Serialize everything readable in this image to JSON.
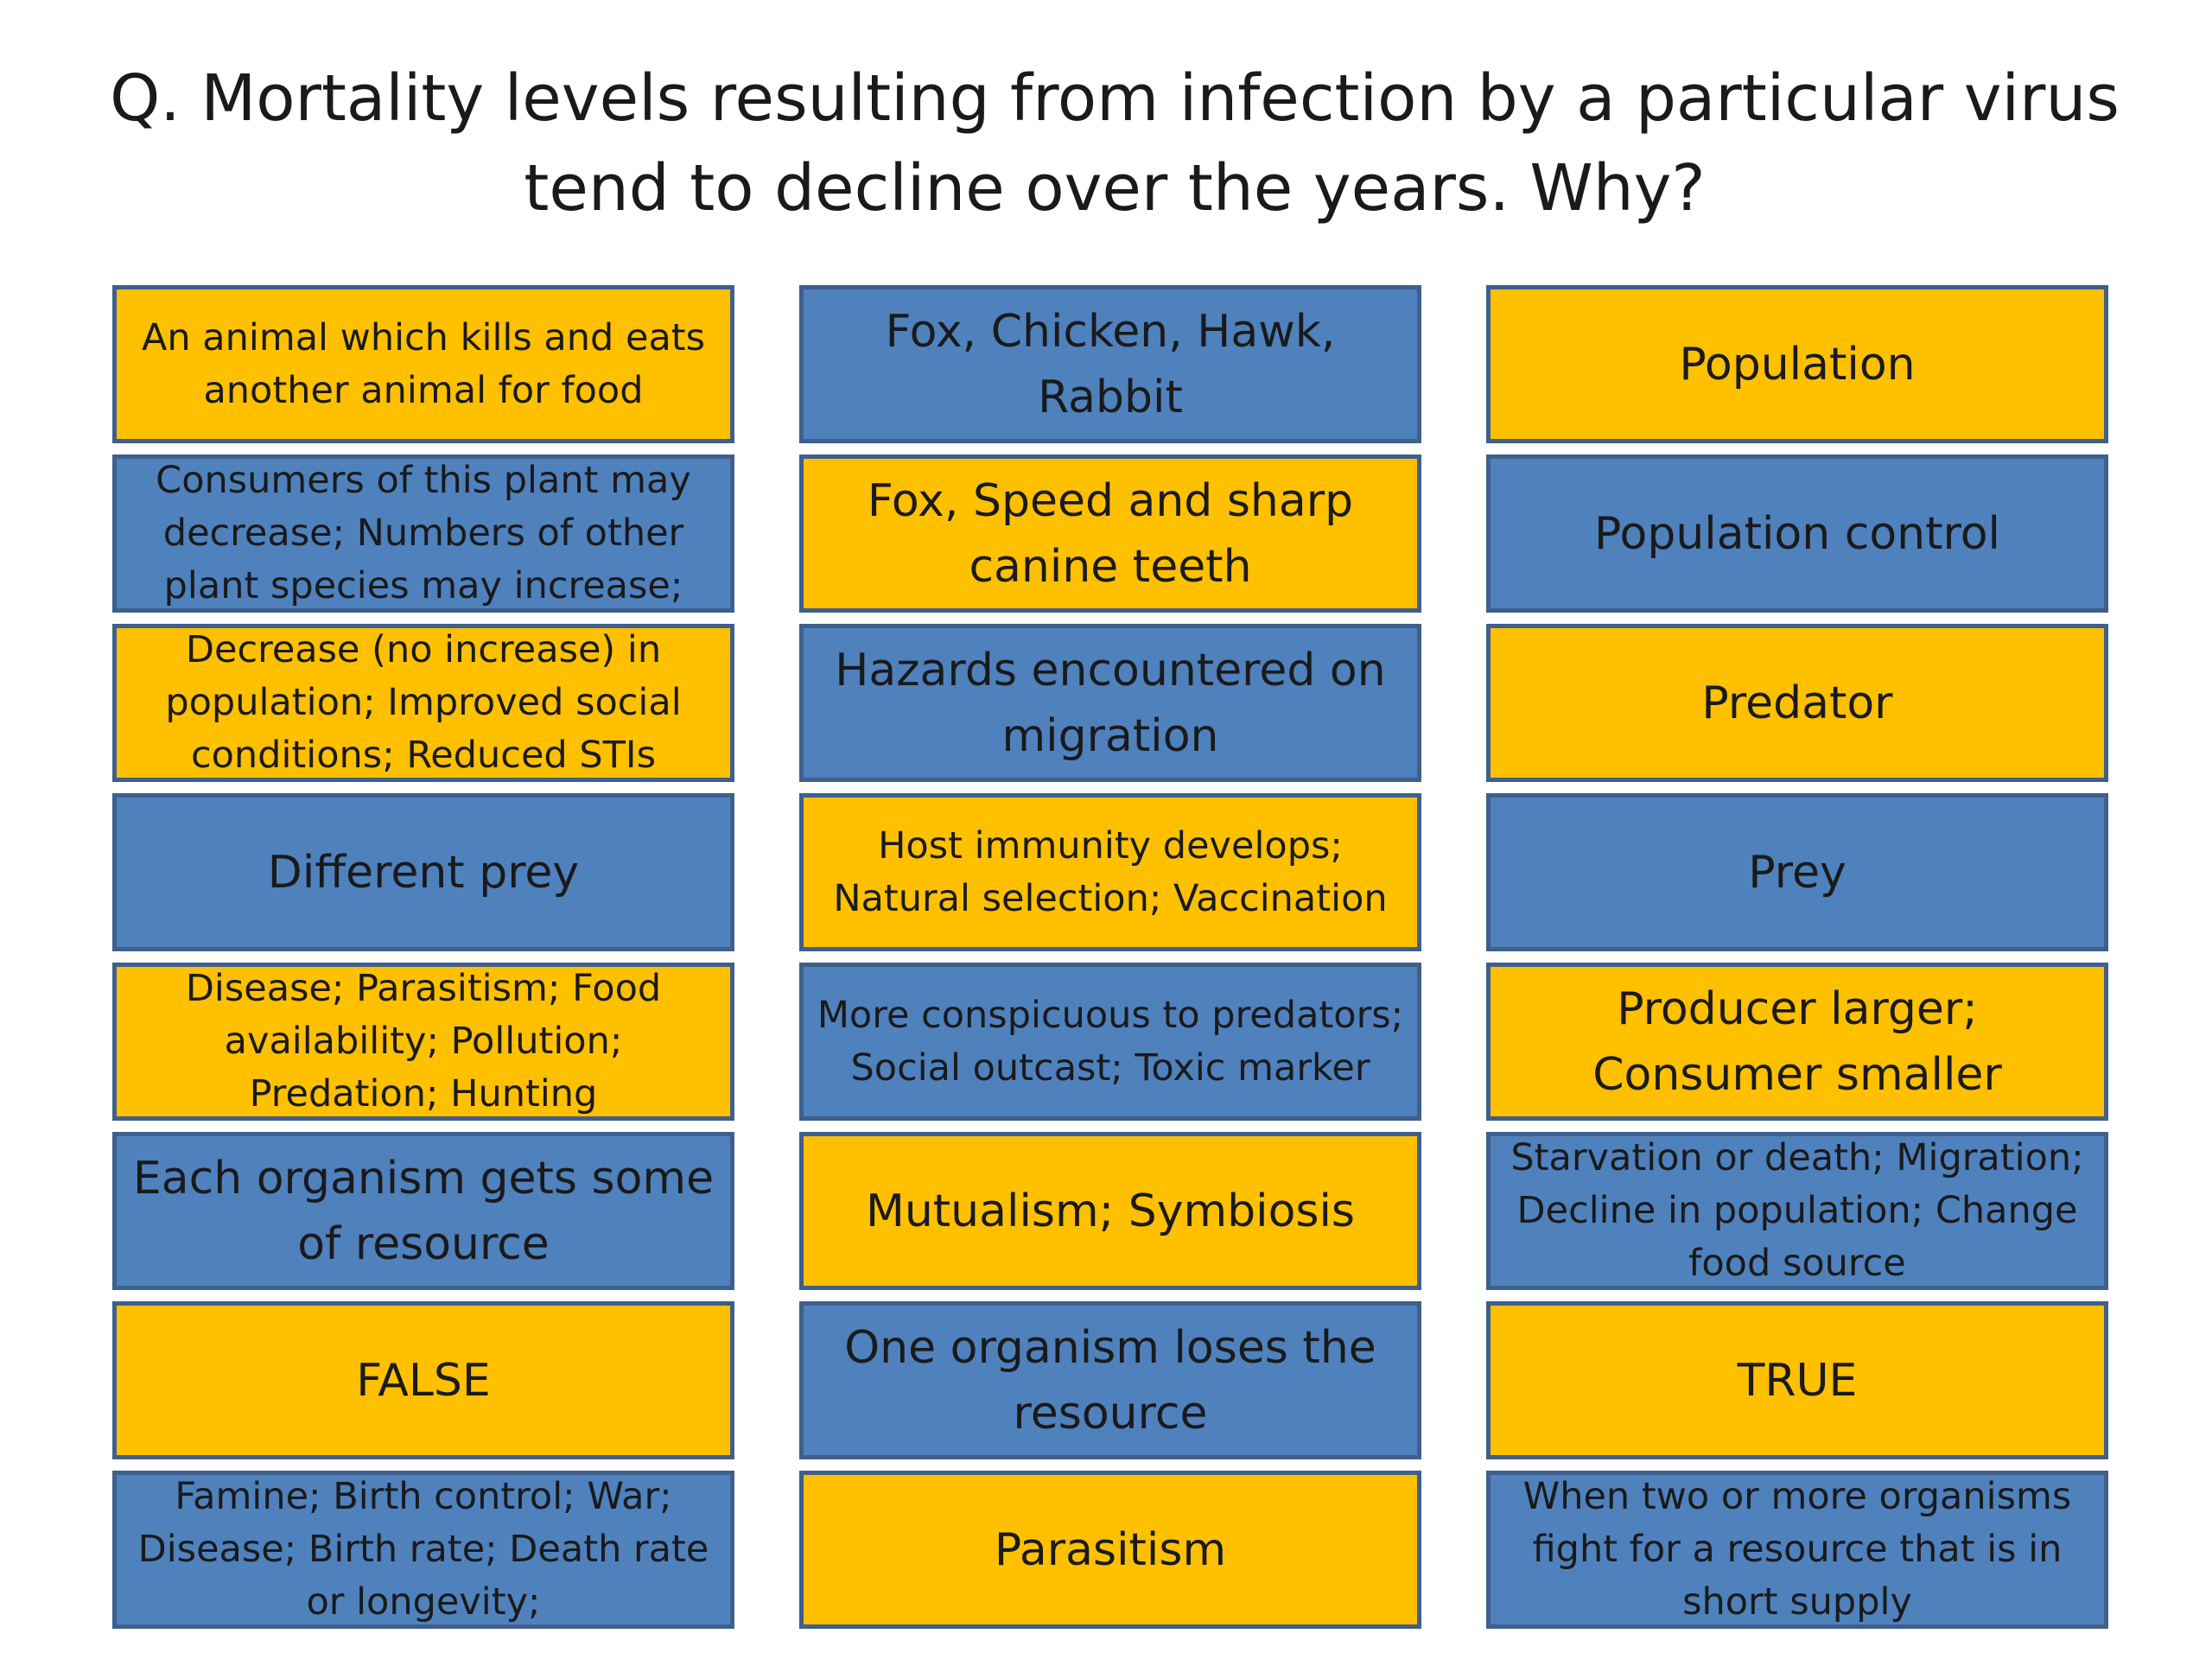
{
  "question": "Q. Mortality levels resulting from infection by a particular virus tend to decline over the years. Why?",
  "colors": {
    "orange": "#ffc000",
    "blue": "#4f81bd",
    "border": "#3f5f8c"
  },
  "cards": [
    {
      "text": "An animal which kills and eats another animal for food",
      "color": "orange"
    },
    {
      "text": "Fox, Chicken, Hawk, Rabbit",
      "color": "blue"
    },
    {
      "text": "Population",
      "color": "orange"
    },
    {
      "text": "Consumers of this plant may decrease; Numbers of other plant species may increase;",
      "color": "blue"
    },
    {
      "text": "Fox, Speed and sharp canine teeth",
      "color": "orange"
    },
    {
      "text": "Population control",
      "color": "blue"
    },
    {
      "text": "Decrease (no increase) in population; Improved social conditions; Reduced STIs",
      "color": "orange"
    },
    {
      "text": "Hazards encountered on migration",
      "color": "blue"
    },
    {
      "text": "Predator",
      "color": "orange"
    },
    {
      "text": "Different prey",
      "color": "blue"
    },
    {
      "text": "Host immunity develops; Natural selection; Vaccination",
      "color": "orange"
    },
    {
      "text": "Prey",
      "color": "blue"
    },
    {
      "text": "Disease; Parasitism; Food availability; Pollution; Predation; Hunting",
      "color": "orange"
    },
    {
      "text": "More conspicuous to predators; Social outcast; Toxic marker",
      "color": "blue"
    },
    {
      "text": "Producer larger; Consumer smaller",
      "color": "orange"
    },
    {
      "text": "Each organism gets some of resource",
      "color": "blue"
    },
    {
      "text": "Mutualism; Symbiosis",
      "color": "orange"
    },
    {
      "text": "Starvation or death; Migration; Decline in population; Change food source",
      "color": "blue"
    },
    {
      "text": "FALSE",
      "color": "orange"
    },
    {
      "text": "One organism loses the resource",
      "color": "blue"
    },
    {
      "text": "TRUE",
      "color": "orange"
    },
    {
      "text": "Famine; Birth control; War; Disease; Birth rate; Death rate or longevity;",
      "color": "blue"
    },
    {
      "text": "Parasitism",
      "color": "orange"
    },
    {
      "text": "When two or more organisms fight for a resource that is in short supply",
      "color": "blue"
    }
  ]
}
